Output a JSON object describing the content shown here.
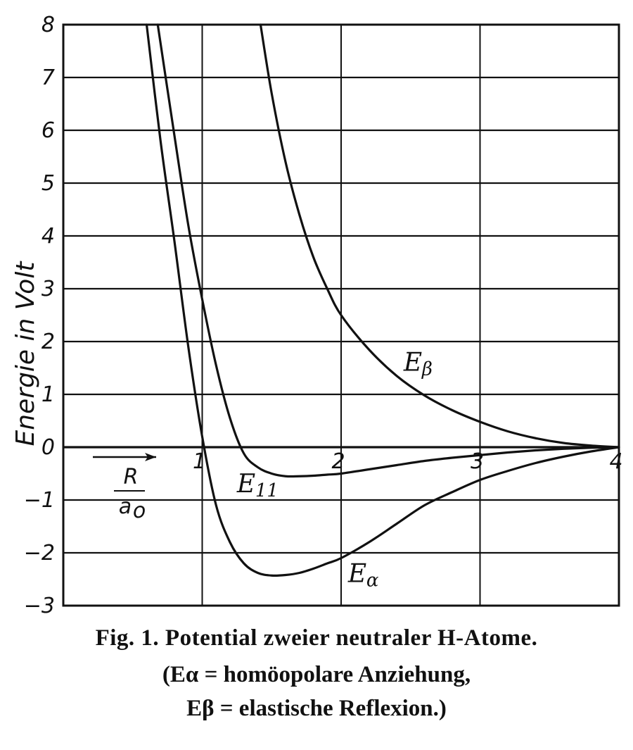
{
  "chart_data": {
    "type": "line",
    "ylabel": "Energie in Volt",
    "xlim": [
      0,
      4
    ],
    "ylim": [
      -3,
      8
    ],
    "grid": true,
    "x_ticks": [
      "1",
      "2",
      "3",
      "4"
    ],
    "y_ticks": [
      "8",
      "7",
      "6",
      "5",
      "4",
      "3",
      "2",
      "1",
      "0",
      "-1",
      "-2",
      "-3"
    ],
    "x_axis_label": {
      "numerator": "R",
      "denominator": "a",
      "denominator_sub": "o"
    },
    "series": [
      {
        "name": "Eα",
        "label_main": "E",
        "label_sub": "α",
        "x": [
          0.6,
          0.7,
          0.8,
          0.9,
          1.0,
          1.1,
          1.2,
          1.3,
          1.4,
          1.5,
          1.6,
          1.7,
          1.8,
          1.9,
          2.0,
          2.2,
          2.4,
          2.6,
          2.8,
          3.0,
          3.2,
          3.4,
          3.6,
          3.8,
          4.0
        ],
        "y": [
          8.0,
          5.8,
          3.9,
          1.9,
          0.2,
          -1.1,
          -1.8,
          -2.2,
          -2.38,
          -2.43,
          -2.42,
          -2.38,
          -2.3,
          -2.2,
          -2.1,
          -1.8,
          -1.45,
          -1.1,
          -0.85,
          -0.62,
          -0.45,
          -0.3,
          -0.18,
          -0.08,
          0.0
        ]
      },
      {
        "name": "E11",
        "label_main": "E",
        "label_sub": "11",
        "x": [
          0.68,
          0.8,
          0.9,
          1.0,
          1.1,
          1.2,
          1.3,
          1.4,
          1.5,
          1.6,
          1.7,
          1.8,
          1.9,
          2.0,
          2.2,
          2.4,
          2.6,
          2.8,
          3.0,
          3.2,
          3.4,
          3.6,
          3.8,
          4.0
        ],
        "y": [
          8.0,
          5.9,
          4.2,
          2.8,
          1.55,
          0.55,
          -0.12,
          -0.38,
          -0.5,
          -0.55,
          -0.55,
          -0.54,
          -0.52,
          -0.5,
          -0.42,
          -0.34,
          -0.26,
          -0.2,
          -0.15,
          -0.1,
          -0.06,
          -0.03,
          -0.01,
          0.0
        ]
      },
      {
        "name": "Eβ",
        "label_main": "E",
        "label_sub": "β",
        "x": [
          1.42,
          1.5,
          1.6,
          1.7,
          1.8,
          1.9,
          2.0,
          2.2,
          2.4,
          2.6,
          2.8,
          3.0,
          3.2,
          3.4,
          3.6,
          3.8,
          4.0
        ],
        "y": [
          8.0,
          6.7,
          5.4,
          4.4,
          3.6,
          3.0,
          2.5,
          1.85,
          1.35,
          0.98,
          0.7,
          0.48,
          0.3,
          0.17,
          0.08,
          0.03,
          0.0
        ]
      }
    ]
  },
  "caption": {
    "line1": "Fig. 1.   Potential zweier neutraler H-Atome.",
    "line2": "(Eα = homöopolare Anziehung,",
    "line3": "Eβ = elastische Reflexion.)"
  }
}
